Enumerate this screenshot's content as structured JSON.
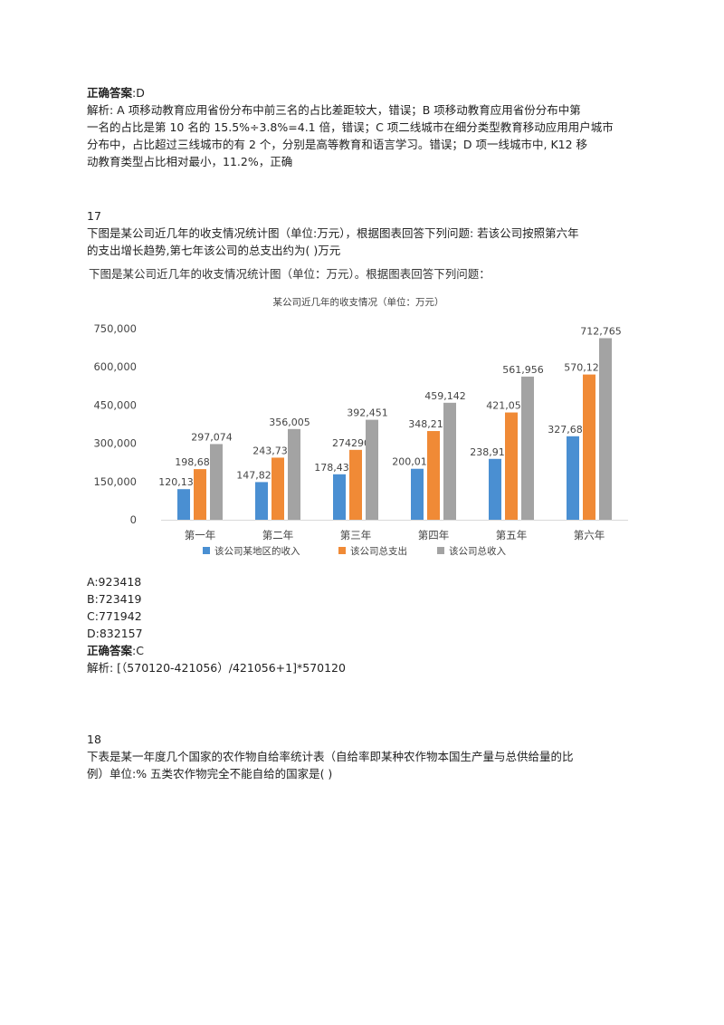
{
  "q16": {
    "answer_label": "正确答案",
    "answer_value": ":D",
    "analysis_lines": [
      "解析: A 项移动教育应用省份分布中前三名的占比差距较大，错误；B 项移动教育应用省份分布中第",
      "一名的占比是第 10 名的 15.5%÷3.8%=4.1 倍，错误；C 项二线城市在细分类型教育移动应用用户城市",
      "分布中，占比超过三线城市的有 2 个，分别是高等教育和语言学习。错误；D 项一线城市中, K12 移",
      "动教育类型占比相对最小，11.2%，正确"
    ]
  },
  "q17": {
    "number": "17",
    "question_lines": [
      "下图是某公司近几年的收支情况统计图（单位:万元），根据图表回答下列问题: 若该公司按照第六年",
      "的支出增长趋势,第七年该公司的总支出约为(   )万元"
    ],
    "options": [
      "A:923418",
      "B:723419",
      "C:771942",
      "D:832157"
    ],
    "answer_label": "正确答案",
    "answer_value": ":C",
    "analysis": "解析: [（570120-421056）/421056+1]*570120"
  },
  "q18": {
    "number": "18",
    "question_lines": [
      "下表是某一年度几个国家的农作物自给率统计表（自给率即某种农作物本国生产量与总供给量的比",
      "例）单位:% 五类农作物完全不能自给的国家是(   )"
    ]
  },
  "chart_data": {
    "type": "bar",
    "header": "下图是某公司近几年的收支情况统计图（单位：万元）。根据图表回答下列问题：",
    "title": "某公司近几年的收支情况（单位：万元）",
    "categories": [
      "第一年",
      "第二年",
      "第三年",
      "第四年",
      "第五年",
      "第六年"
    ],
    "series": [
      {
        "name": "该公司某地区的收入",
        "color": "#4a8fd2",
        "values": [
          120137,
          147821,
          178439,
          200012,
          238914,
          327680
        ],
        "labels": [
          "120,137",
          "147,821",
          "178,439",
          "200,012",
          "238,914",
          "327,680"
        ]
      },
      {
        "name": "该公司总支出",
        "color": "#f08a36",
        "values": [
          198682,
          243738,
          274290,
          348216,
          421056,
          570120
        ],
        "labels": [
          "198,682",
          "243,738",
          "274290",
          "348,216",
          "421,056",
          "570,120"
        ]
      },
      {
        "name": "该公司总收入",
        "color": "#a3a3a3",
        "values": [
          297074,
          356005,
          392451,
          459142,
          561956,
          712765
        ],
        "labels": [
          "297,074",
          "356,005",
          "392,451",
          "459,142",
          "561,956",
          "712,765"
        ]
      }
    ],
    "yticks": [
      0,
      150000,
      300000,
      450000,
      600000,
      750000
    ],
    "ytick_labels": [
      "0",
      "150,000",
      "300,000",
      "450,000",
      "600,000",
      "750,000"
    ],
    "ylim": [
      0,
      750000
    ],
    "legend": "bottom",
    "grid": false
  }
}
